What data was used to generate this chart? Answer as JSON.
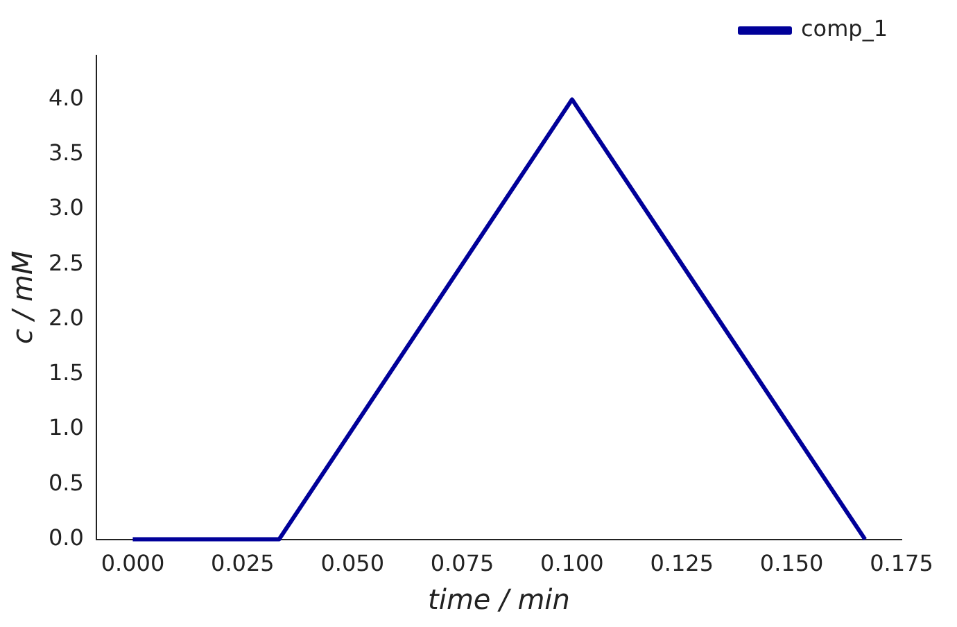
{
  "chart_data": {
    "type": "line",
    "xlabel": "time / min",
    "ylabel": "c / mM",
    "x": [
      0,
      0.0333,
      0.1,
      0.1667
    ],
    "series": [
      {
        "name": "comp_1",
        "color": "#000099",
        "values": [
          0,
          0,
          4,
          0
        ]
      }
    ],
    "xlim": [
      -0.0083,
      0.175
    ],
    "xticks": [
      {
        "value": 0,
        "label": "0.000"
      },
      0.025,
      {
        "value": 0.05,
        "label": "0.050"
      },
      0.075,
      {
        "value": 0.1,
        "label": "0.100"
      },
      0.125,
      {
        "value": 0.15,
        "label": "0.150"
      },
      0.175
    ],
    "ylim": [
      0,
      4.4
    ],
    "yticks": [
      {
        "value": 0,
        "label": "0.0"
      },
      0.5,
      {
        "value": 1,
        "label": "1.0"
      },
      1.5,
      {
        "value": 2,
        "label": "2.0"
      },
      2.5,
      {
        "value": 3,
        "label": "3.0"
      },
      3.5,
      {
        "value": 4,
        "label": "4.0"
      }
    ],
    "grid": false,
    "legend": "top right",
    "marker": "none",
    "line_style": "solid"
  }
}
